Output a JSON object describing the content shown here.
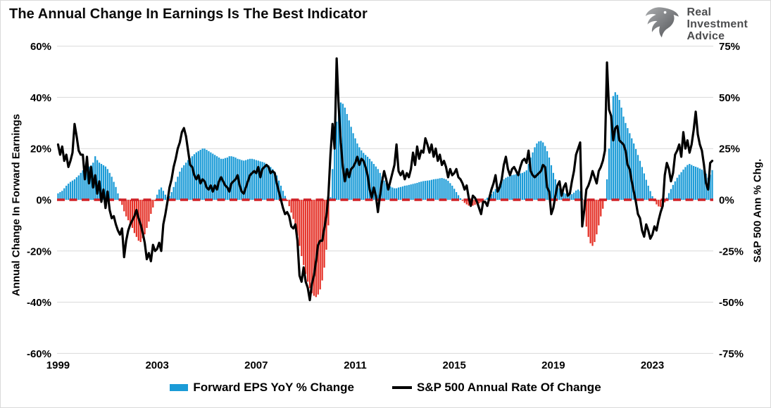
{
  "header": {
    "title": "The Annual Change In Earnings Is The Best Indicator",
    "logo": {
      "line1": "Real",
      "line2": "Investment",
      "line3": "Advice"
    }
  },
  "colors": {
    "grid": "#d9d9d9",
    "text": "#000000",
    "logo_text": "#4c4d4f",
    "border": "#d9d9d9",
    "bar_positive": "#1b9bd7",
    "bar_negative": "#e53228",
    "zero_dash": "#d12026",
    "line": "#000000"
  },
  "chart_data": {
    "type": "bar+line",
    "title": "The Annual Change In Earnings Is The Best Indicator",
    "grid": true,
    "legend_position": "bottom",
    "x_axis": {
      "tick_labels": [
        "1999",
        "2003",
        "2007",
        "2011",
        "2015",
        "2019",
        "2023"
      ],
      "tick_years": [
        1999,
        2003,
        2007,
        2011,
        2015,
        2019,
        2023
      ],
      "start": "1999-01",
      "end": "2025-06",
      "freq": "monthly"
    },
    "left_axis": {
      "label": "Annual Change In Forward Earnings",
      "tick_labels": [
        "60%",
        "40%",
        "20%",
        "0%",
        "-20%",
        "-40%",
        "-60%"
      ],
      "tick_values": [
        60,
        40,
        20,
        0,
        -20,
        -40,
        -60
      ],
      "min": -60,
      "max": 60
    },
    "right_axis": {
      "label": "S&P 500 Ann % Chg.",
      "tick_labels": [
        "75%",
        "50%",
        "25%",
        "0%",
        "-25%",
        "-50%",
        "-75%"
      ],
      "tick_values": [
        75,
        50,
        25,
        0,
        -25,
        -50,
        -75
      ],
      "min": -75,
      "max": 75
    },
    "zero_line": {
      "value": 0,
      "style": "dashed",
      "color": "#d12026"
    },
    "series": [
      {
        "name": "Forward EPS YoY % Change",
        "type": "bar",
        "axis": "left",
        "color_positive": "#1b9bd7",
        "color_negative": "#e53228",
        "values": [
          2.5,
          3,
          3.5,
          4.5,
          5.5,
          6.3,
          7,
          7.5,
          8,
          8.8,
          9.5,
          10.5,
          11.5,
          12,
          12.5,
          13,
          13.5,
          14.5,
          17,
          15.5,
          14.5,
          14,
          13.5,
          13,
          12,
          10.5,
          9,
          7,
          5,
          2.5,
          0.5,
          -2,
          -4.5,
          -6.5,
          -8,
          -9.5,
          -11,
          -13,
          -14.5,
          -16,
          -16.5,
          -15,
          -13.5,
          -11,
          -8.5,
          -5.5,
          -3,
          -0.5,
          2,
          4,
          4.8,
          3.5,
          2,
          1,
          1.5,
          3,
          5,
          7,
          9,
          11,
          12.5,
          13.5,
          14.5,
          15.5,
          16.3,
          17,
          17.8,
          18.5,
          19,
          19.5,
          20,
          20,
          19.5,
          19,
          18.5,
          18,
          17.5,
          17,
          16.5,
          16,
          16,
          16.3,
          16.5,
          17,
          17,
          16.8,
          16.5,
          16,
          15.8,
          15.5,
          15.3,
          15.5,
          15.8,
          16,
          16,
          15.8,
          15.5,
          15.3,
          15,
          14.8,
          14.5,
          14,
          13.5,
          12.8,
          12,
          11,
          9.5,
          7.5,
          5.5,
          3.5,
          1.5,
          -0.5,
          -2.5,
          -5,
          -7.5,
          -10.5,
          -14,
          -18,
          -22,
          -25.5,
          -29,
          -32,
          -34.5,
          -36.5,
          -37.5,
          -38,
          -37,
          -35,
          -31.5,
          -26.5,
          -19.5,
          -10,
          1,
          12,
          22,
          30.5,
          36,
          38,
          37.5,
          36,
          33.5,
          31,
          28.5,
          26,
          24,
          22,
          20.5,
          19.3,
          18.3,
          17.5,
          16.8,
          16,
          15,
          14,
          13,
          12,
          10.5,
          9,
          7.5,
          6.5,
          5.8,
          5.2,
          4.8,
          4.5,
          4.5,
          4.8,
          5,
          5.2,
          5.5,
          5.6,
          5.8,
          6,
          6.2,
          6.4,
          6.6,
          6.9,
          7.1,
          7.3,
          7.4,
          7.5,
          7.6,
          7.8,
          8,
          8.1,
          8.2,
          8.4,
          8.5,
          8.3,
          8,
          7.4,
          6.5,
          5.5,
          4.3,
          3,
          1.8,
          0.6,
          -0.4,
          -1.2,
          -1.8,
          -2.3,
          -2.5,
          -2.3,
          -2,
          -1.7,
          -1.4,
          -1,
          -0.6,
          0.2,
          0.8,
          1.4,
          2.2,
          3.2,
          4.2,
          5.2,
          6.2,
          7.2,
          8,
          8.6,
          9,
          9.3,
          9.6,
          9.8,
          10,
          10.1,
          10.3,
          10.5,
          10.9,
          11.5,
          14,
          16.5,
          18.5,
          20.5,
          22,
          22.8,
          23,
          22.4,
          21,
          19,
          16.5,
          13.5,
          10.5,
          8,
          6,
          4.5,
          3.5,
          2.8,
          2.4,
          2.1,
          2,
          2.2,
          2.8,
          3.6,
          4,
          3.4,
          0.5,
          -5,
          -10.5,
          -14.5,
          -17,
          -18,
          -16.5,
          -13.5,
          -10,
          -6.5,
          -3.5,
          -0.5,
          8,
          20,
          33,
          40.5,
          42,
          41,
          39,
          36,
          32.5,
          30,
          28,
          26,
          24,
          22,
          19.8,
          17.5,
          15.2,
          12.8,
          10.3,
          7.8,
          5.5,
          3.4,
          1.4,
          -0.6,
          -1.8,
          -2.6,
          -2.8,
          -2.2,
          -1,
          0.8,
          2.6,
          4.2,
          5.8,
          7.2,
          8.6,
          9.8,
          10.8,
          11.8,
          12.8,
          13.6,
          14,
          13.6,
          13.2,
          12.9,
          12.6,
          12.2,
          11.8,
          11.2,
          10.2,
          8.6,
          9.8,
          11.6
        ]
      },
      {
        "name": "S&P 500 Annual Rate Of Change",
        "type": "line",
        "axis": "right",
        "color": "#000000",
        "values": [
          27,
          22,
          26,
          19,
          22,
          16,
          19,
          23,
          37,
          31,
          24,
          22,
          22,
          10,
          21,
          8,
          16,
          6,
          12,
          3,
          9,
          -1,
          5,
          -4,
          4,
          -5,
          -9,
          -8,
          -12,
          -15,
          -17,
          -14,
          -28,
          -20,
          -15,
          -12,
          -10,
          -8,
          -5,
          -9,
          -12,
          -16,
          -21,
          -29,
          -26,
          -30,
          -22,
          -25,
          -24,
          -21,
          -25,
          -12,
          -7,
          -1,
          6,
          10,
          16,
          20,
          25,
          28,
          33,
          35,
          31,
          24,
          17,
          16,
          12,
          10,
          12,
          8,
          10,
          9,
          6,
          5,
          7,
          4,
          7,
          5,
          9,
          11,
          9,
          7,
          6,
          4,
          8,
          9,
          10,
          12,
          7,
          4,
          3,
          6,
          9,
          12,
          13,
          14,
          13,
          16,
          11,
          15,
          16,
          17,
          16,
          13,
          14,
          13,
          8,
          4,
          0,
          -4,
          -7,
          -6,
          -8,
          -13,
          -14,
          -12,
          -20,
          -37,
          -40,
          -33,
          -40,
          -43,
          -49,
          -41,
          -37,
          -30,
          -22,
          -20,
          -20,
          -14,
          -8,
          2,
          22,
          37,
          25,
          69,
          45,
          28,
          16,
          9,
          15,
          11,
          15,
          16,
          18,
          21,
          17,
          20,
          19,
          16,
          12,
          5,
          1,
          6,
          2,
          -6,
          2,
          9,
          14,
          10,
          5,
          9,
          13,
          17,
          27,
          14,
          12,
          14,
          10,
          13,
          11,
          15,
          23,
          17,
          26,
          20,
          24,
          23,
          30,
          27,
          23,
          27,
          21,
          25,
          19,
          22,
          17,
          19,
          16,
          11,
          15,
          12,
          13,
          15,
          11,
          10,
          8,
          5,
          7,
          1,
          -3,
          2,
          1,
          -1,
          -4,
          -7,
          -1,
          -1,
          -3,
          1,
          5,
          8,
          12,
          4,
          6,
          10,
          17,
          21,
          15,
          12,
          15,
          16,
          14,
          12,
          16,
          19,
          20,
          18,
          24,
          14,
          12,
          11,
          12,
          13,
          14,
          17,
          16,
          6,
          4,
          -7,
          -4,
          2,
          7,
          9,
          2,
          6,
          8,
          2,
          3,
          9,
          14,
          22,
          25,
          28,
          -13,
          -5,
          5,
          7,
          10,
          14,
          11,
          8,
          14,
          16,
          19,
          24,
          67,
          44,
          41,
          29,
          35,
          36,
          29,
          28,
          27,
          24,
          17,
          15,
          9,
          4,
          -1,
          -7,
          -9,
          -15,
          -18,
          -12,
          -15,
          -19,
          -17,
          -13,
          -15,
          -10,
          -6,
          -3,
          12,
          18,
          15,
          9,
          13,
          22,
          24,
          27,
          21,
          33,
          25,
          29,
          23,
          27,
          34,
          43,
          32,
          27,
          24,
          17,
          8,
          5,
          18,
          19
        ]
      }
    ]
  }
}
